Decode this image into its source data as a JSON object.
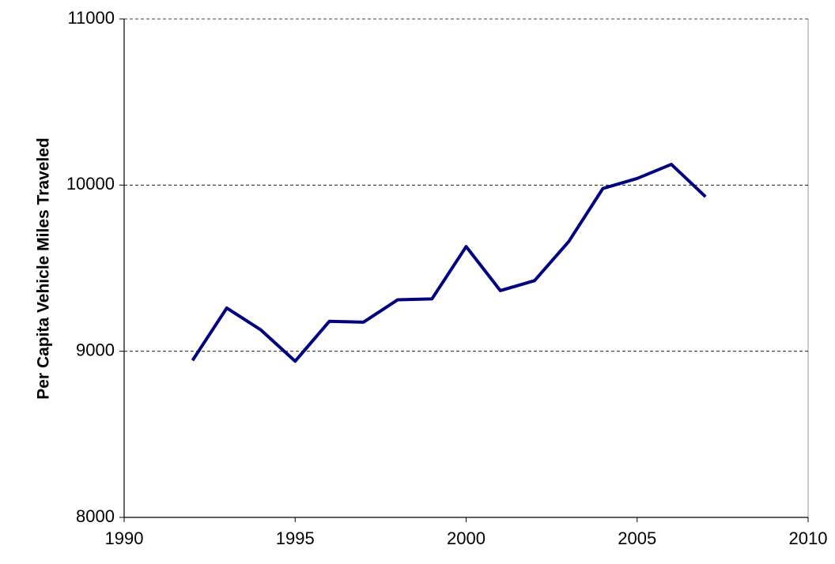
{
  "chart_data": {
    "type": "line",
    "y_label": "Per Capita Vehicle Miles Traveled",
    "series": [
      {
        "color": "#000080",
        "x": [
          1992,
          1993,
          1994,
          1995,
          1996,
          1997,
          1998,
          1999,
          2000,
          2001,
          2002,
          2003,
          2004,
          2005,
          2006,
          2007
        ],
        "values": [
          8945,
          9260,
          9128,
          8940,
          9180,
          9175,
          9310,
          9315,
          9630,
          9365,
          9425,
          9660,
          9980,
          10040,
          10125,
          9930
        ]
      }
    ],
    "xlim": [
      1990,
      2010
    ],
    "xticks": [
      1990,
      1995,
      2000,
      2005,
      2010
    ],
    "ylim": [
      8000,
      11000
    ],
    "yticks": [
      8000,
      9000,
      10000,
      11000
    ],
    "grid": true
  }
}
